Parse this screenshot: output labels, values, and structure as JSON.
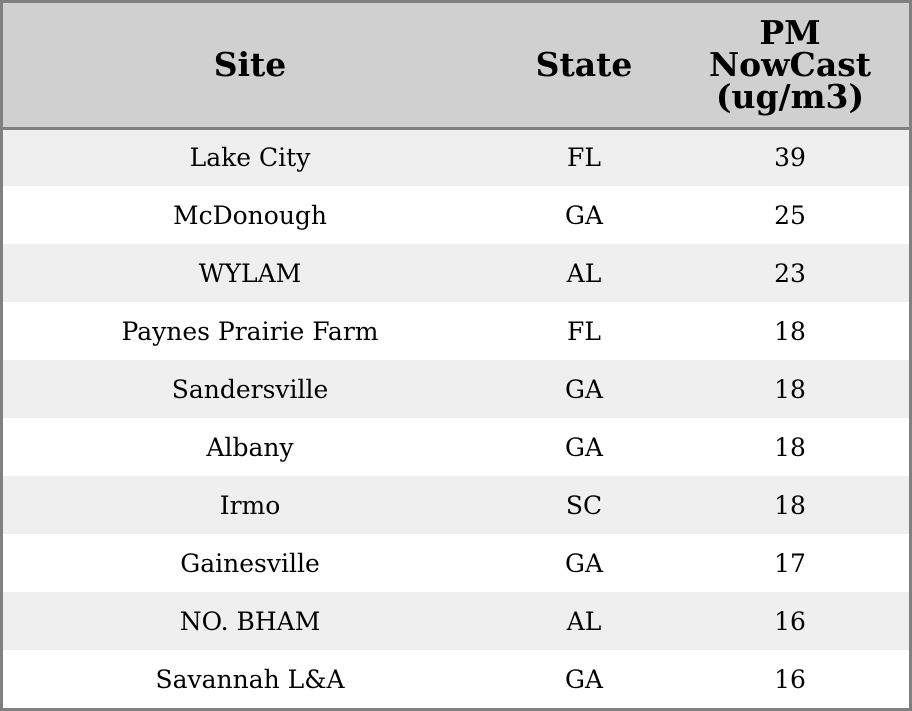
{
  "chart_data": {
    "type": "table",
    "columns": [
      "Site",
      "State",
      "PM NowCast (ug/m3)"
    ],
    "rows": [
      {
        "site": "Lake City",
        "state": "FL",
        "pm": "39"
      },
      {
        "site": "McDonough",
        "state": "GA",
        "pm": "25"
      },
      {
        "site": "WYLAM",
        "state": "AL",
        "pm": "23"
      },
      {
        "site": "Paynes Prairie Farm",
        "state": "FL",
        "pm": "18"
      },
      {
        "site": "Sandersville",
        "state": "GA",
        "pm": "18"
      },
      {
        "site": "Albany",
        "state": "GA",
        "pm": "18"
      },
      {
        "site": "Irmo",
        "state": "SC",
        "pm": "18"
      },
      {
        "site": "Gainesville",
        "state": "GA",
        "pm": "17"
      },
      {
        "site": "NO. BHAM",
        "state": "AL",
        "pm": "16"
      },
      {
        "site": "Savannah L&A",
        "state": "GA",
        "pm": "16"
      }
    ]
  },
  "colors": {
    "header_bg": "#d0d0d0",
    "stripe_bg": "#efefef",
    "border": "#808080"
  }
}
